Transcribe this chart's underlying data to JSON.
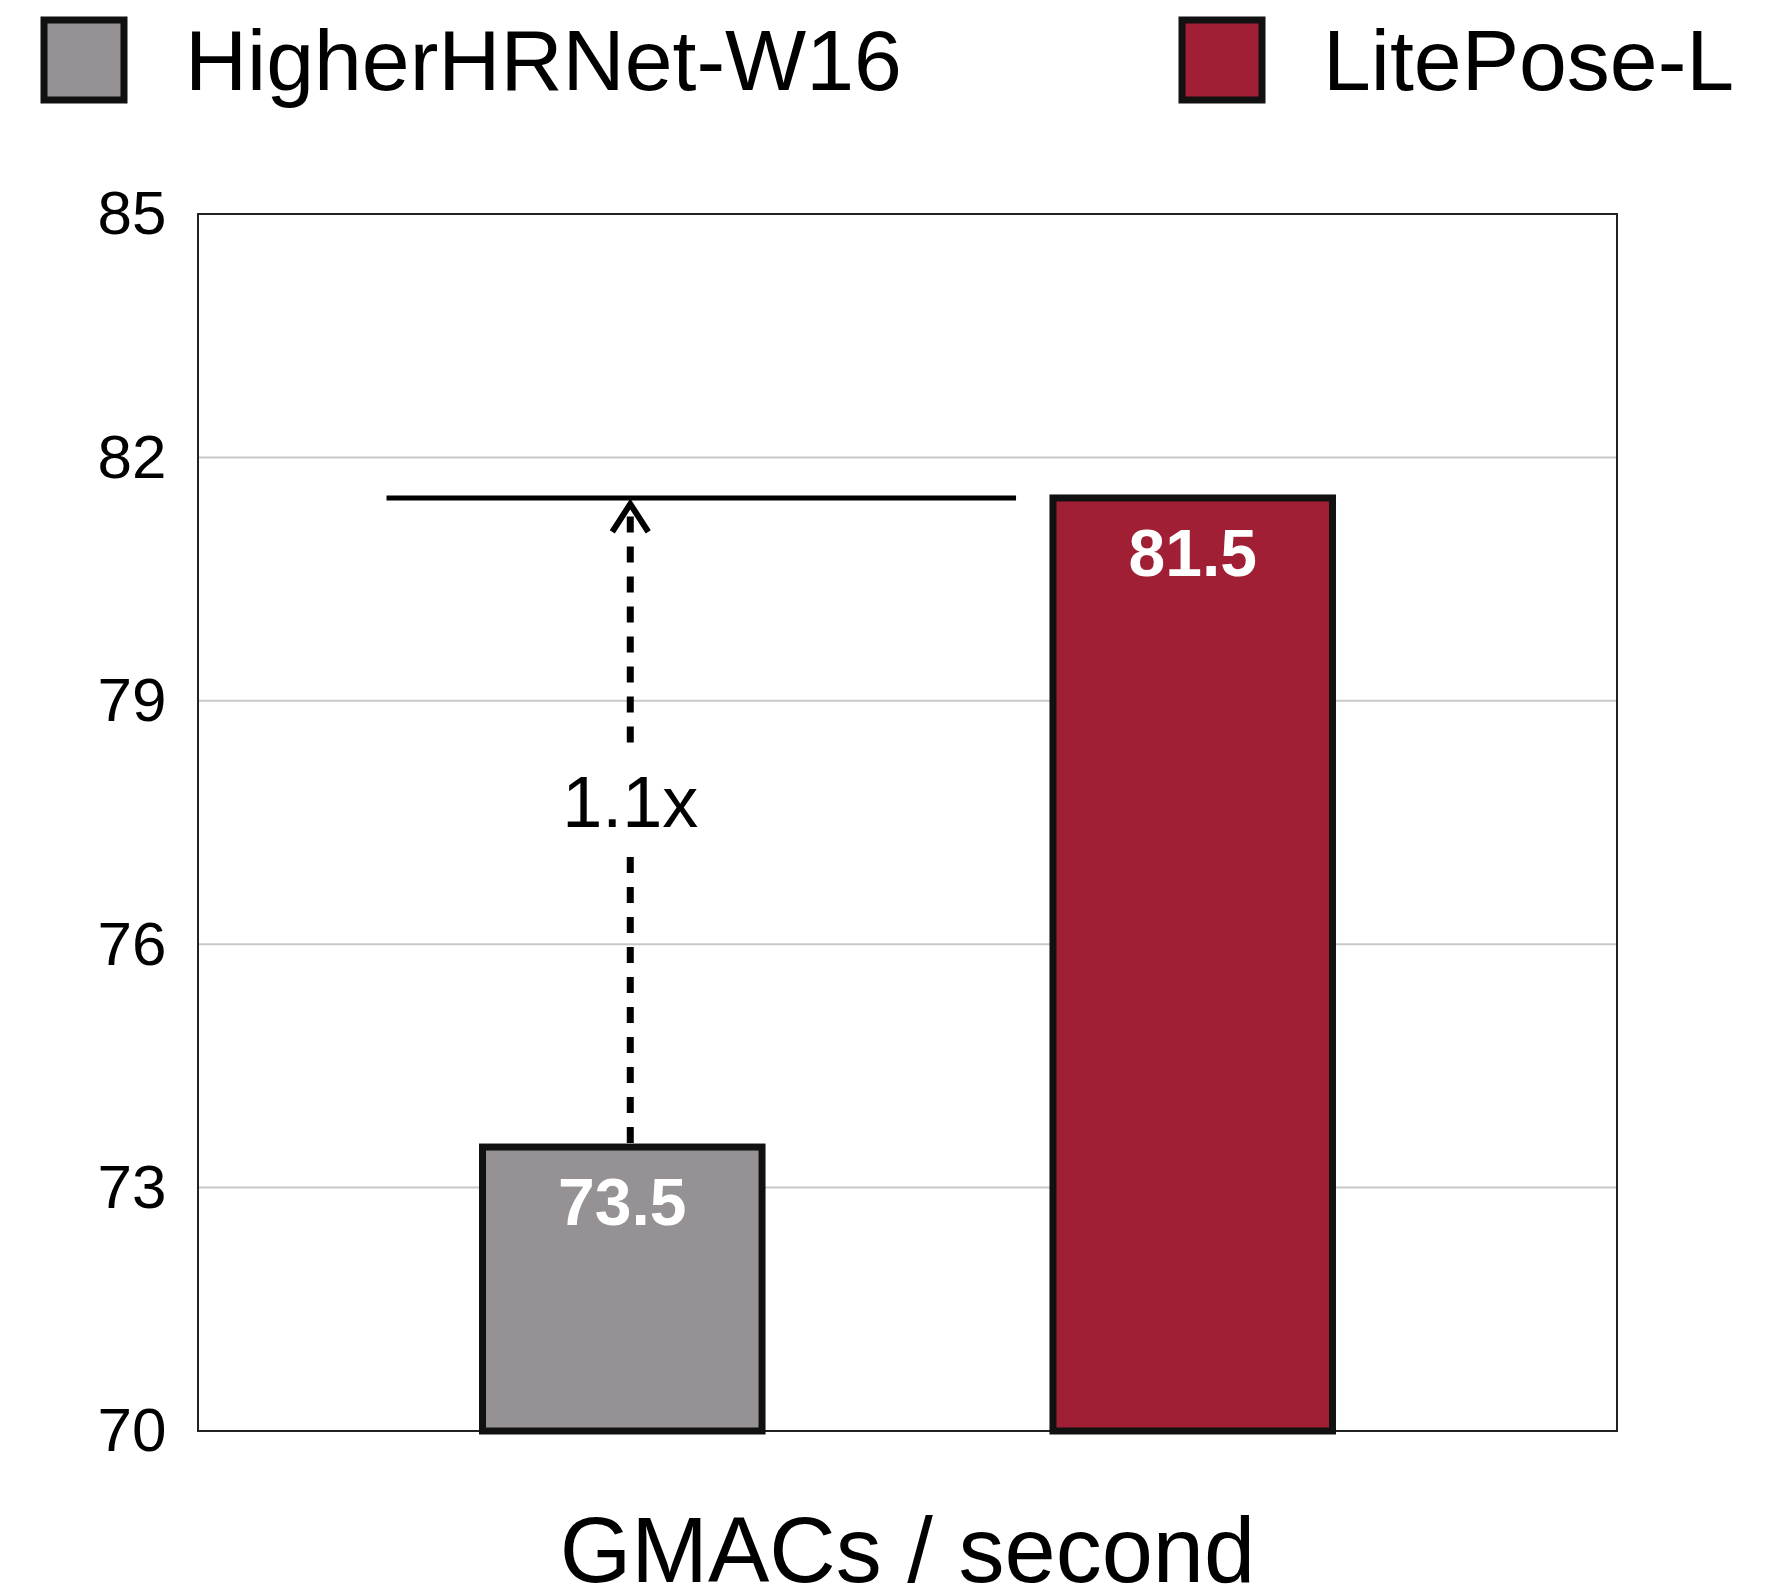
{
  "chart_data": {
    "type": "bar",
    "xlabel": "GMACs / second",
    "categories": [
      null
    ],
    "series": [
      {
        "name": "HigherHRNet-W16",
        "color": "#959194",
        "values": [
          73.5
        ]
      },
      {
        "name": "LitePose-L",
        "color": "#a11f35",
        "values": [
          81.5
        ]
      }
    ],
    "ylim": [
      70,
      85
    ],
    "yticks": [
      70,
      73,
      76,
      79,
      82,
      85
    ],
    "grid": "y",
    "legend": "top",
    "data_labels": true,
    "ref_lines": [
      {
        "axis": "y",
        "value": 81.5,
        "color": "#000000"
      }
    ],
    "annotations": [
      "1.1x"
    ]
  }
}
